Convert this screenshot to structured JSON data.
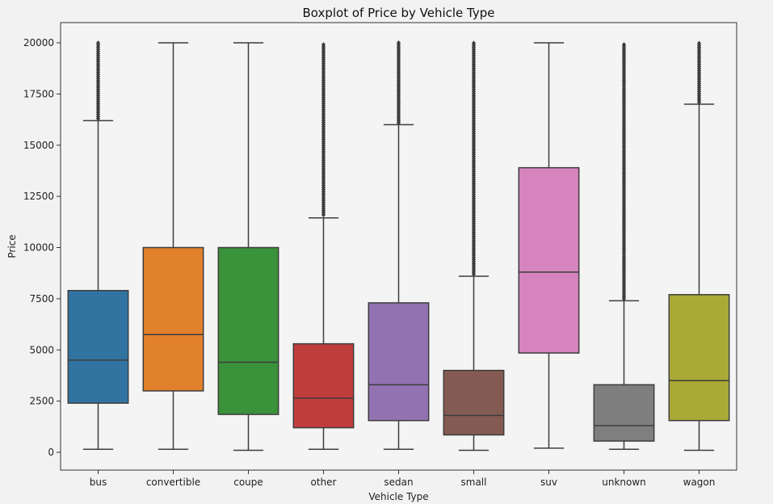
{
  "chart_data": {
    "type": "boxplot",
    "title": "Boxplot of Price by Vehicle Type",
    "xlabel": "Vehicle Type",
    "ylabel": "Price",
    "ylim": [
      -900,
      21000
    ],
    "yticks": [
      0,
      2500,
      5000,
      7500,
      10000,
      12500,
      15000,
      17500,
      20000
    ],
    "grid": false,
    "legend": "none",
    "categories": [
      "bus",
      "convertible",
      "coupe",
      "other",
      "sedan",
      "small",
      "suv",
      "unknown",
      "wagon"
    ],
    "boxes": [
      {
        "category": "bus",
        "whisker_low": 150,
        "q1": 2400,
        "median": 4500,
        "q3": 7900,
        "whisker_high": 16200,
        "outliers_from": 16300,
        "outliers_to": 20000,
        "color": "#3274a1"
      },
      {
        "category": "convertible",
        "whisker_low": 150,
        "q1": 3000,
        "median": 5750,
        "q3": 10000,
        "whisker_high": 20000,
        "outliers_from": null,
        "outliers_to": null,
        "color": "#e1812c"
      },
      {
        "category": "coupe",
        "whisker_low": 100,
        "q1": 1850,
        "median": 4400,
        "q3": 10000,
        "whisker_high": 20000,
        "outliers_from": null,
        "outliers_to": null,
        "color": "#3a923a"
      },
      {
        "category": "other",
        "whisker_low": 150,
        "q1": 1200,
        "median": 2650,
        "q3": 5300,
        "whisker_high": 11450,
        "outliers_from": 11600,
        "outliers_to": 20000,
        "color": "#c03d3e"
      },
      {
        "category": "sedan",
        "whisker_low": 150,
        "q1": 1550,
        "median": 3300,
        "q3": 7300,
        "whisker_high": 16000,
        "outliers_from": 16100,
        "outliers_to": 20000,
        "color": "#9372b2"
      },
      {
        "category": "small",
        "whisker_low": 100,
        "q1": 850,
        "median": 1800,
        "q3": 4000,
        "whisker_high": 8600,
        "outliers_from": 8700,
        "outliers_to": 20000,
        "color": "#845b53"
      },
      {
        "category": "suv",
        "whisker_low": 200,
        "q1": 4850,
        "median": 8800,
        "q3": 13900,
        "whisker_high": 20000,
        "outliers_from": null,
        "outliers_to": null,
        "color": "#d684bd"
      },
      {
        "category": "unknown",
        "whisker_low": 150,
        "q1": 550,
        "median": 1300,
        "q3": 3300,
        "whisker_high": 7400,
        "outliers_from": 7500,
        "outliers_to": 20000,
        "color": "#7f7f7f"
      },
      {
        "category": "wagon",
        "whisker_low": 100,
        "q1": 1550,
        "median": 3500,
        "q3": 7700,
        "whisker_high": 17000,
        "outliers_from": 17100,
        "outliers_to": 20000,
        "color": "#a9a937"
      }
    ]
  }
}
